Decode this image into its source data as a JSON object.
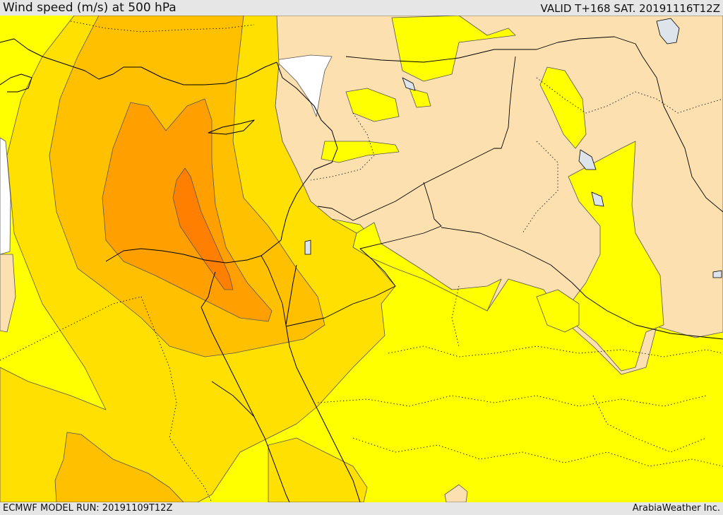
{
  "header": {
    "title": "Wind speed (m/s) at 500 hPa",
    "valid": "VALID T+168 SAT. 20191116T12Z"
  },
  "footer": {
    "model_run": "ECMWF MODEL RUN: 20191109T12Z",
    "credit": "ArabiaWeather Inc."
  },
  "colors": {
    "level_1": "#ffff00",
    "level_2": "#ffe000",
    "level_3": "#ffc000",
    "level_4": "#ffa000",
    "level_5": "#ff8000",
    "low_wind_area": "#fde0b0",
    "sea_unshaded": "#ffffff",
    "lakes": "#dde4ec",
    "coastline": "#000000",
    "borders": "#000000",
    "contours": "#555555"
  }
}
